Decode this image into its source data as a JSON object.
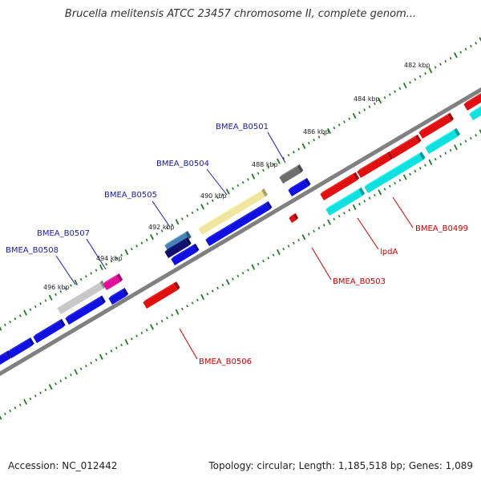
{
  "title": "Brucella melitensis ATCC 23457 chromosome II, complete genom...",
  "footer": {
    "accession": "Accession: NC_012442",
    "summary": "Topology: circular; Length: 1,185,518 bp; Genes: 1,089"
  },
  "ticks": [
    "482 kbp",
    "484 kbp",
    "486 kbp",
    "488 kbp",
    "490 kbp",
    "492 kbp",
    "494 kbp",
    "496 kbp"
  ],
  "gene_labels": [
    {
      "name": "BMEA_B0501",
      "strand": "forward"
    },
    {
      "name": "BMEA_B0504",
      "strand": "forward"
    },
    {
      "name": "BMEA_B0505",
      "strand": "forward"
    },
    {
      "name": "BMEA_B0507",
      "strand": "forward"
    },
    {
      "name": "BMEA_B0508",
      "strand": "forward"
    },
    {
      "name": "BMEA_B0499",
      "strand": "reverse"
    },
    {
      "name": "lpdA",
      "strand": "reverse"
    },
    {
      "name": "BMEA_B0503",
      "strand": "reverse"
    },
    {
      "name": "BMEA_B0506",
      "strand": "reverse"
    }
  ],
  "colors": {
    "forward_label": "#1a1aa6",
    "reverse_label": "#cc0000",
    "backbone": "#808080",
    "tick": "#1e7a1e",
    "gene_blue": "#1010e0",
    "gene_red": "#e01010",
    "gene_cyan": "#10e0e0",
    "gene_gray": "#6e6e6e",
    "gene_lightgray": "#c8c8c8",
    "gene_yellow": "#f0e6a0",
    "gene_magenta": "#e0109a",
    "gene_steelblue": "#4682b4",
    "gene_navy": "#10106e"
  }
}
